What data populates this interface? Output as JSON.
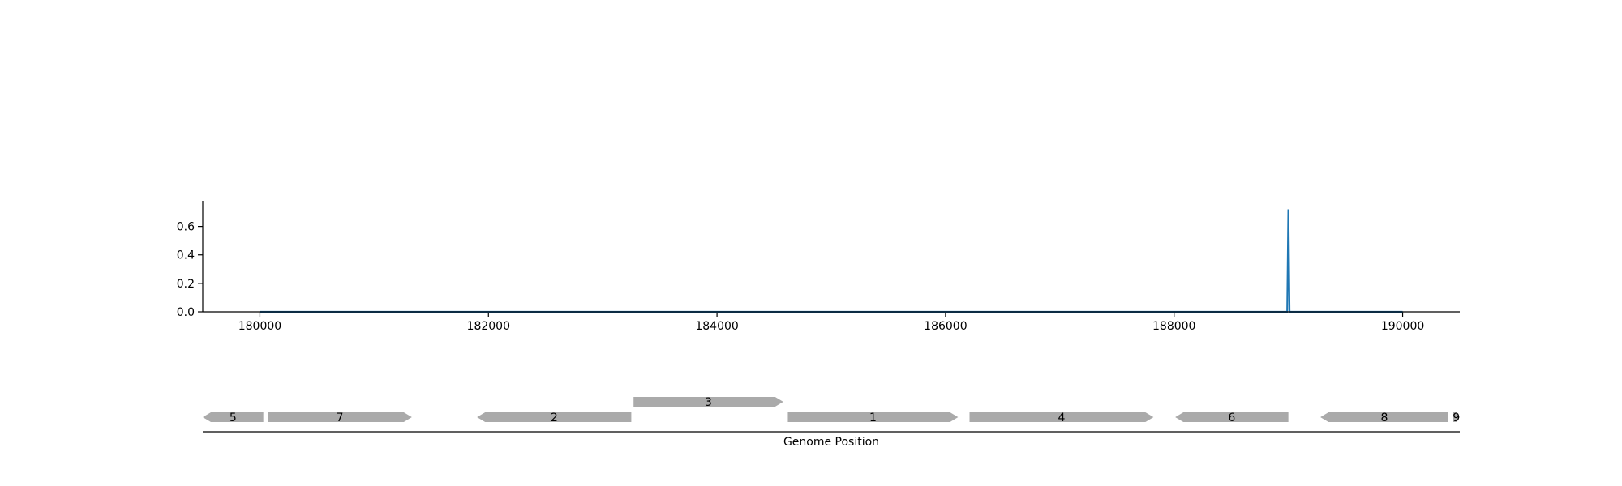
{
  "chart_data": {
    "type": "line",
    "title": "",
    "xlabel": "Genome Position",
    "ylabel": "",
    "xlim": [
      179500,
      190500
    ],
    "ylim": [
      0,
      0.78
    ],
    "x_ticks": [
      180000,
      182000,
      184000,
      186000,
      188000,
      190000
    ],
    "x_tick_labels": [
      "180000",
      "182000",
      "184000",
      "186000",
      "188000",
      "190000"
    ],
    "y_ticks": [
      0.0,
      0.2,
      0.4,
      0.6
    ],
    "y_tick_labels": [
      "0.0",
      "0.2",
      "0.4",
      "0.6"
    ],
    "grid": false,
    "series": [
      {
        "name": "",
        "color": "#1f77b4",
        "x": [
          180000,
          188990,
          189000,
          189010,
          190000
        ],
        "y": [
          0.0,
          0.0,
          0.72,
          0.0,
          0.0
        ]
      }
    ],
    "genes": [
      {
        "label": "5",
        "start": 179500,
        "end": 180030,
        "strand": "-",
        "row": 0
      },
      {
        "label": "7",
        "start": 180070,
        "end": 181330,
        "strand": "+",
        "row": 0
      },
      {
        "label": "2",
        "start": 181900,
        "end": 183250,
        "strand": "-",
        "row": 0
      },
      {
        "label": "3",
        "start": 183270,
        "end": 184580,
        "strand": "+",
        "row": 1
      },
      {
        "label": "1",
        "start": 184620,
        "end": 186110,
        "strand": "+",
        "row": 0
      },
      {
        "label": "4",
        "start": 186210,
        "end": 187820,
        "strand": "+",
        "row": 0
      },
      {
        "label": "6",
        "start": 188010,
        "end": 189000,
        "strand": "-",
        "row": 0
      },
      {
        "label": "8",
        "start": 189280,
        "end": 190400,
        "strand": "-",
        "row": 0
      },
      {
        "label": "9",
        "start": 190440,
        "end": 190500,
        "strand": "+",
        "row": 0
      }
    ],
    "gene_color": "#aaaaaa"
  }
}
